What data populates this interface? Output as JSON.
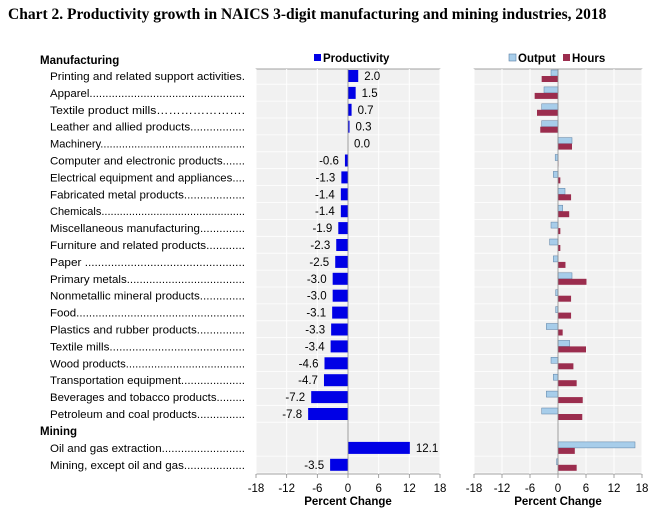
{
  "title": "Chart 2. Productivity growth in NAICS 3-digit manufacturing and mining industries, 2018",
  "colors": {
    "productivity": "#0000e6",
    "output": "#a7cdea",
    "hours": "#9b2d4e",
    "panel_bg": "#f1f1f1",
    "grid": "#ffffff"
  },
  "chart_data": [
    {
      "type": "bar",
      "orientation": "horizontal",
      "title": "Productivity",
      "legend": [
        "Productivity"
      ],
      "xlabel": "Percent Change",
      "xlim": [
        -18,
        18
      ],
      "xticks": [
        -18,
        -12,
        -6,
        0,
        6,
        12,
        18
      ],
      "groups": [
        {
          "name": "Manufacturing",
          "start": 0
        },
        {
          "name": "Mining",
          "start": 21
        }
      ],
      "categories": [
        "Printing and related support activities.",
        "Apparel.................................................",
        "Textile product mills………………….",
        "Leather and allied products.................",
        "Machinery...............................................",
        "Computer and electronic products.......",
        "Electrical equipment and appliances....",
        "Fabricated metal products...................",
        "Chemicals...............................................",
        "Miscellaneous manufacturing..............",
        "Furniture and related products............",
        "Paper .................................................",
        "Primary metals.....................................",
        "Nonmetallic mineral products..............",
        "Food.....................................................",
        "Plastics and rubber products...............",
        "Textile mills..........................................",
        "Wood products......................................",
        "Transportation equipment....................",
        "Beverages and tobacco products.........",
        "Petroleum and coal products...............",
        "Oil and gas extraction..........................",
        "Mining, except oil and gas..................."
      ],
      "values": [
        2.0,
        1.5,
        0.7,
        0.3,
        0.0,
        -0.6,
        -1.3,
        -1.4,
        -1.4,
        -1.9,
        -2.3,
        -2.5,
        -3.0,
        -3.0,
        -3.1,
        -3.3,
        -3.4,
        -4.6,
        -4.7,
        -7.2,
        -7.8,
        12.1,
        -3.5
      ],
      "labels": [
        "2.0",
        "1.5",
        "0.7",
        "0.3",
        "0.0",
        "-0.6",
        "-1.3",
        "-1.4",
        "-1.4",
        "-1.9",
        "-2.3",
        "-2.5",
        "-3.0",
        "-3.0",
        "-3.1",
        "-3.3",
        "-3.4",
        "-4.6",
        "-4.7",
        "-7.2",
        "-7.8",
        "12.1",
        "-3.5"
      ]
    },
    {
      "type": "bar",
      "orientation": "horizontal",
      "title": "Output and Hours",
      "legend": [
        "Output",
        "Hours"
      ],
      "xlabel": "Percent Change",
      "xlim": [
        -18,
        18
      ],
      "xticks": [
        -18,
        -12,
        -6,
        0,
        6,
        12,
        18
      ],
      "series": [
        {
          "name": "Output",
          "values": [
            -1.5,
            -3.0,
            -3.5,
            -3.5,
            3.0,
            -0.6,
            -1.0,
            1.5,
            1.0,
            -1.5,
            -1.8,
            -1.0,
            3.0,
            -0.5,
            -0.5,
            -2.5,
            2.5,
            -1.5,
            -1.0,
            -2.5,
            -3.5,
            16.5,
            -0.3
          ]
        },
        {
          "name": "Hours",
          "values": [
            -3.5,
            -5.0,
            -4.5,
            -3.8,
            3.0,
            0.1,
            0.5,
            2.8,
            2.4,
            0.5,
            0.5,
            1.6,
            6.1,
            2.8,
            2.8,
            1.0,
            6.0,
            3.3,
            4.0,
            5.3,
            5.2,
            3.6,
            4.0
          ]
        }
      ]
    }
  ]
}
